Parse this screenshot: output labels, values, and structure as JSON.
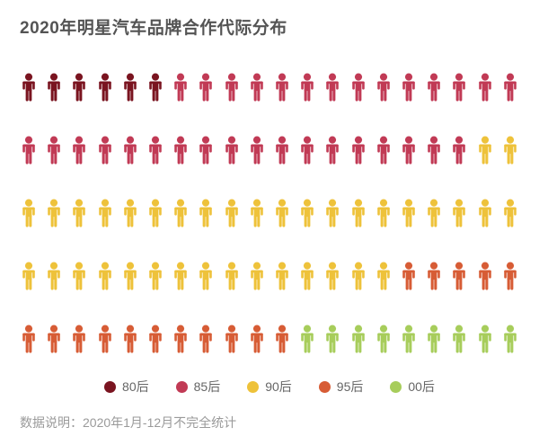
{
  "title": "2020年明星汽车品牌合作代际分布",
  "footer": {
    "note": "数据说明：2020年1月-12月不完全统计"
  },
  "chart_data": {
    "type": "pictogram",
    "title": "2020年明星汽车品牌合作代际分布",
    "icon": "person-icon",
    "total_icons": 100,
    "icons_per_row": 20,
    "rows": 5,
    "fill_order": "sequential-left-to-right-top-to-bottom",
    "legend_position": "bottom-center",
    "series": [
      {
        "name": "80后",
        "count": 6,
        "color": "#7a1420"
      },
      {
        "name": "85后",
        "count": 32,
        "color": "#c13a55"
      },
      {
        "name": "90后",
        "count": 37,
        "color": "#eec23a"
      },
      {
        "name": "95后",
        "count": 16,
        "color": "#d75c35"
      },
      {
        "name": "00后",
        "count": 9,
        "color": "#a7cd5b"
      }
    ],
    "row_breakdown": [
      [
        {
          "name": "80后",
          "count": 6
        },
        {
          "name": "85后",
          "count": 14
        }
      ],
      [
        {
          "name": "85后",
          "count": 18
        },
        {
          "name": "90后",
          "count": 2
        }
      ],
      [
        {
          "name": "90后",
          "count": 20
        }
      ],
      [
        {
          "name": "90后",
          "count": 15
        },
        {
          "name": "95后",
          "count": 5
        }
      ],
      [
        {
          "name": "95后",
          "count": 11
        },
        {
          "name": "00后",
          "count": 9
        }
      ]
    ]
  }
}
